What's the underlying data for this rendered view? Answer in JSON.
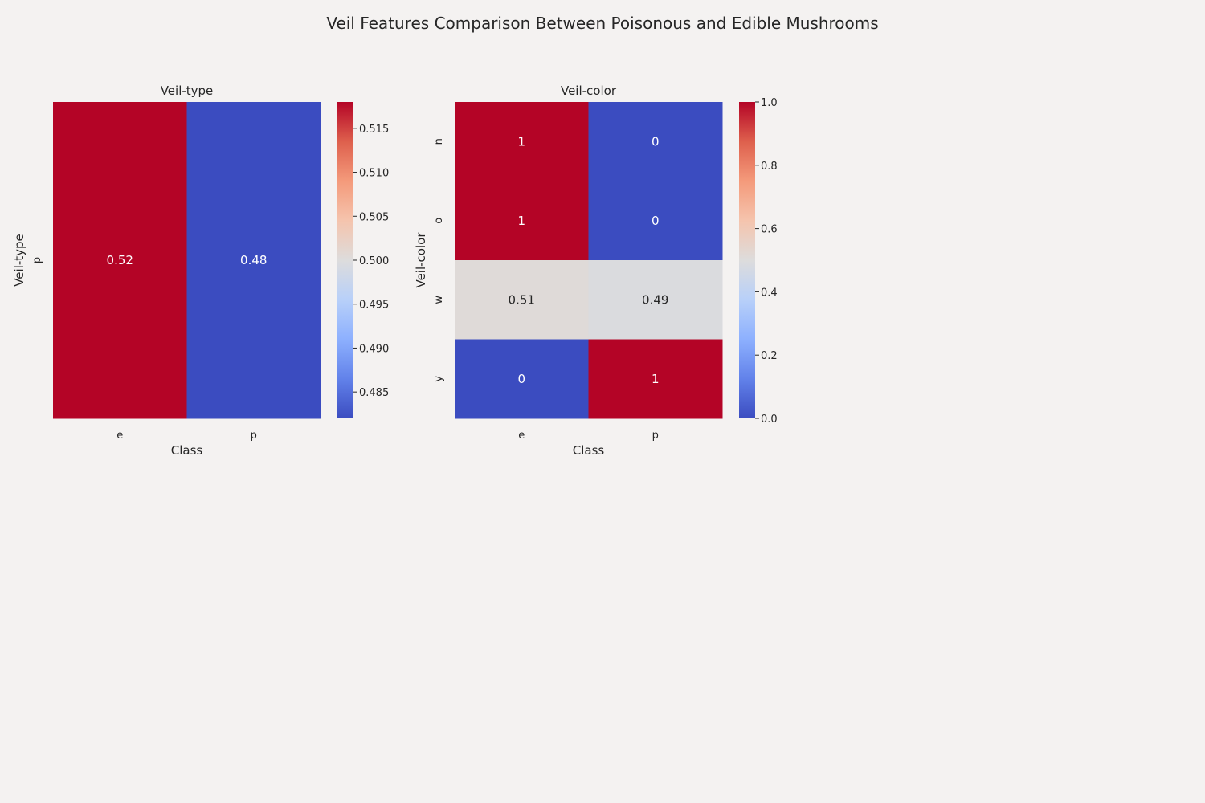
{
  "title": "Veil Features Comparison Between Poisonous and Edible Mushrooms",
  "chart_data": [
    {
      "type": "heatmap",
      "title": "Veil-type",
      "xlabel": "Class",
      "ylabel": "Veil-type",
      "x_categories": [
        "e",
        "p"
      ],
      "y_categories": [
        "p"
      ],
      "values": [
        [
          0.518,
          0.482
        ]
      ],
      "annotations": [
        [
          "0.52",
          "0.48"
        ]
      ],
      "colormap": "coolwarm",
      "colorbar": {
        "min": 0.482,
        "max": 0.518,
        "ticks": [
          0.485,
          0.49,
          0.495,
          0.5,
          0.505,
          0.51,
          0.515
        ],
        "tick_labels": [
          "0.485",
          "0.490",
          "0.495",
          "0.500",
          "0.505",
          "0.510",
          "0.515"
        ]
      }
    },
    {
      "type": "heatmap",
      "title": "Veil-color",
      "xlabel": "Class",
      "ylabel": "Veil-color",
      "x_categories": [
        "e",
        "p"
      ],
      "y_categories": [
        "n",
        "o",
        "w",
        "y"
      ],
      "values": [
        [
          1,
          0
        ],
        [
          1,
          0
        ],
        [
          0.51,
          0.49
        ],
        [
          0,
          1
        ]
      ],
      "annotations": [
        [
          "1",
          "0"
        ],
        [
          "1",
          "0"
        ],
        [
          "0.51",
          "0.49"
        ],
        [
          "0",
          "1"
        ]
      ],
      "colormap": "coolwarm",
      "colorbar": {
        "min": 0.0,
        "max": 1.0,
        "ticks": [
          0.0,
          0.2,
          0.4,
          0.6,
          0.8,
          1.0
        ],
        "tick_labels": [
          "0.0",
          "0.2",
          "0.4",
          "0.6",
          "0.8",
          "1.0"
        ]
      }
    }
  ]
}
